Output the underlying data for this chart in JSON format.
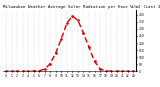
{
  "title": "Milwaukee Weather Average Solar Radiation per Hour W/m2 (Last 24 Hours)",
  "hours": [
    0,
    1,
    2,
    3,
    4,
    5,
    6,
    7,
    8,
    9,
    10,
    11,
    12,
    13,
    14,
    15,
    16,
    17,
    18,
    19,
    20,
    21,
    22,
    23
  ],
  "values": [
    0,
    0,
    0,
    0,
    0,
    2,
    5,
    15,
    55,
    130,
    230,
    340,
    390,
    360,
    270,
    170,
    70,
    18,
    2,
    1,
    0,
    0,
    0,
    0
  ],
  "line_color": "#dd0000",
  "bg_color": "#ffffff",
  "grid_color": "#999999",
  "ylim": [
    0,
    430
  ],
  "ytick_values": [
    0,
    50,
    100,
    150,
    200,
    250,
    300,
    350,
    400
  ],
  "ytick_labels": [
    "0",
    "50",
    "100",
    "150",
    "200",
    "250",
    "300",
    "350",
    "400"
  ],
  "title_fontsize": 3.0,
  "tick_fontsize": 2.2
}
